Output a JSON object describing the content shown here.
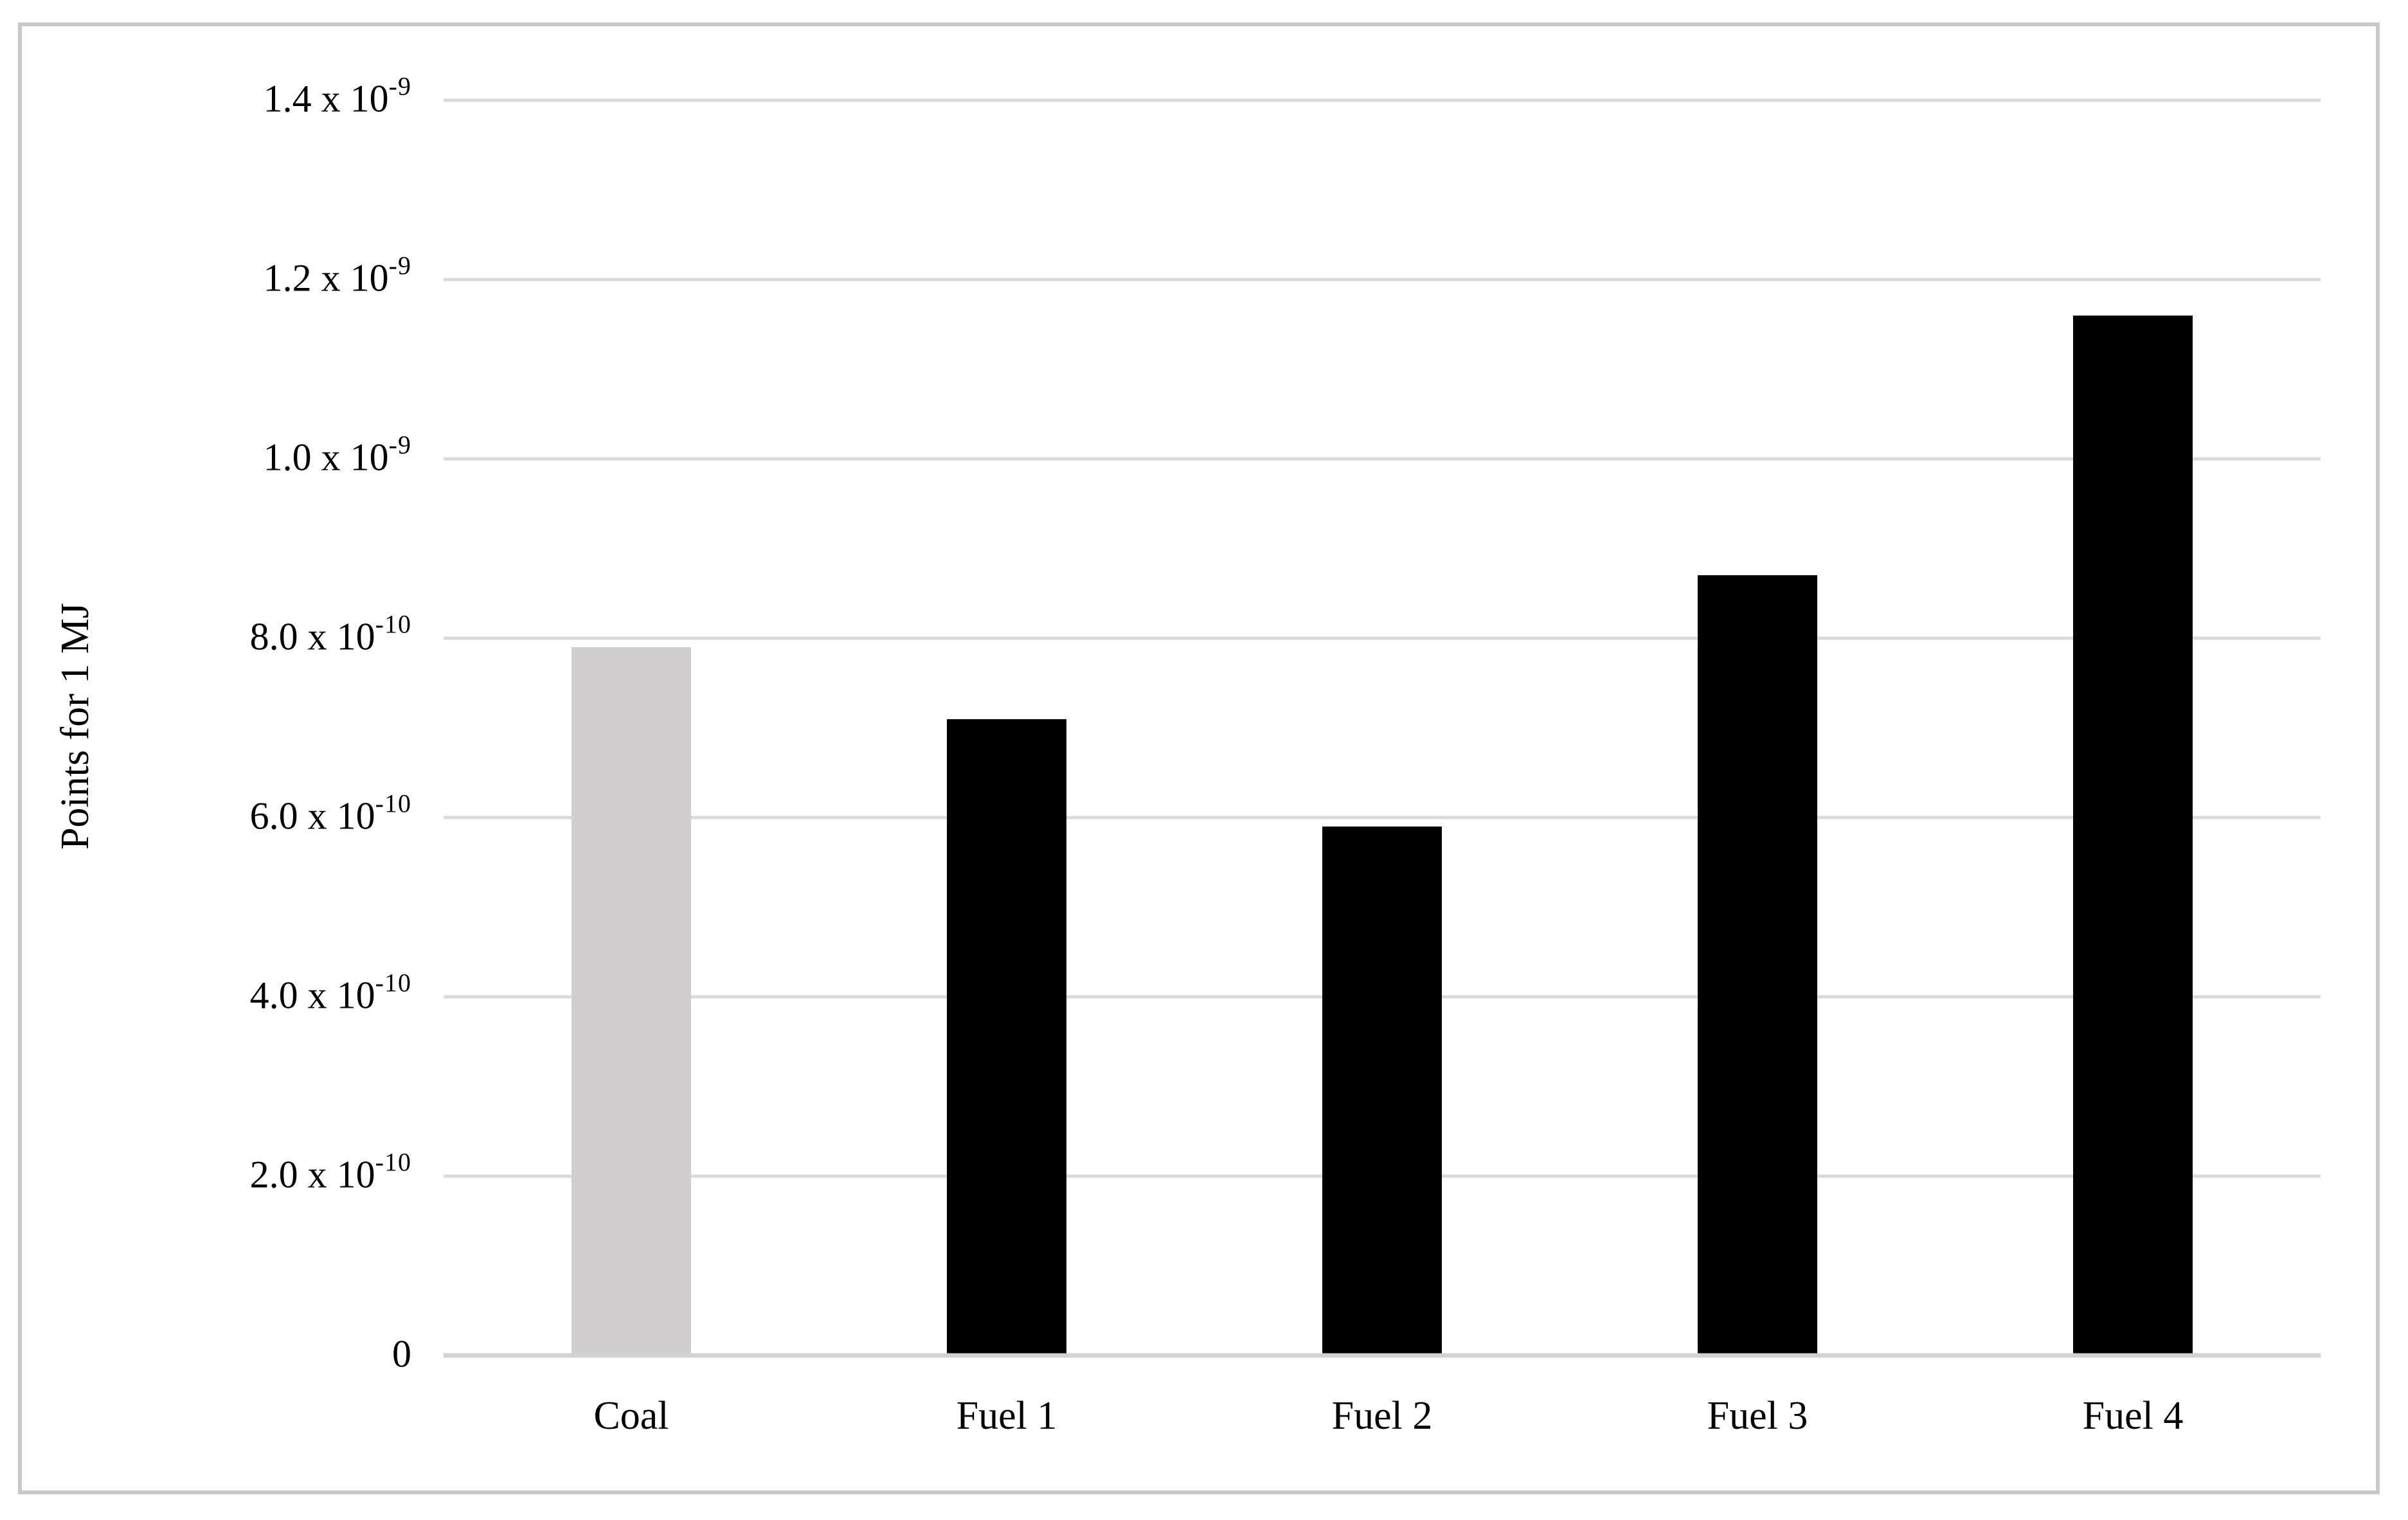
{
  "figure": {
    "ylabel": "Points for 1 MJ",
    "border_color": "#c9c9c9",
    "gridline_color": "#dadada",
    "axis_line_color": "#d2d2d2",
    "coal_bar_color": "#d0cece",
    "fuel_bar_color": "#000000",
    "background_color": "#ffffff"
  },
  "chart_data": {
    "type": "bar",
    "title": "",
    "xlabel": "",
    "ylabel": "Points for 1 MJ",
    "categories": [
      "Coal",
      "Fuel 1",
      "Fuel 2",
      "Fuel 3",
      "Fuel 4"
    ],
    "values": [
      7.9e-10,
      7.1e-10,
      5.9e-10,
      8.7e-10,
      1.16e-09
    ],
    "bar_colors": [
      "#d0cece",
      "#000000",
      "#000000",
      "#000000",
      "#000000"
    ],
    "ylim": [
      0,
      1.4e-09
    ],
    "ytick_step": 2e-10,
    "grid": true,
    "legend": false,
    "yticks": [
      {
        "value": 1.4e-09,
        "mantissa": "1.4 x 10",
        "exponent": "-9"
      },
      {
        "value": 1.2e-09,
        "mantissa": "1.2 x 10",
        "exponent": "-9"
      },
      {
        "value": 1e-09,
        "mantissa": "1.0 x 10",
        "exponent": "-9"
      },
      {
        "value": 8e-10,
        "mantissa": "8.0 x 10",
        "exponent": "-10"
      },
      {
        "value": 6e-10,
        "mantissa": "6.0 x 10",
        "exponent": "-10"
      },
      {
        "value": 4e-10,
        "mantissa": "4.0 x 10",
        "exponent": "-10"
      },
      {
        "value": 2e-10,
        "mantissa": "2.0 x 10",
        "exponent": "-10"
      },
      {
        "value": 0,
        "mantissa": "0",
        "exponent": ""
      }
    ]
  }
}
